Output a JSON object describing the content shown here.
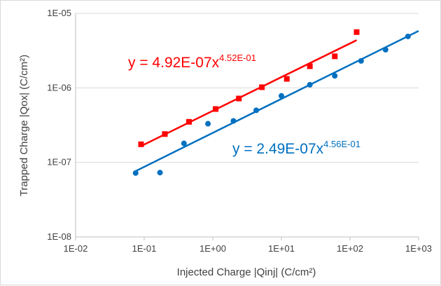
{
  "chart_data": {
    "type": "scatter",
    "title": "",
    "xlabel": "Injected Charge |Qinj| (C/cm²)",
    "ylabel": "Trapped Charge |Qox| (C/cm²)",
    "x_scale": "log",
    "y_scale": "log",
    "xlim": [
      0.01,
      1000
    ],
    "ylim": [
      1e-08,
      1e-05
    ],
    "x_ticks": [
      0.01,
      0.1,
      1,
      10,
      100,
      1000
    ],
    "x_tick_labels": [
      "1E-02",
      "1E-01",
      "1E+00",
      "1E+01",
      "1E+02",
      "1E+03"
    ],
    "y_ticks": [
      1e-08,
      1e-07,
      1e-06,
      1e-05
    ],
    "y_tick_labels": [
      "1E-08",
      "1E-07",
      "1E-06",
      "1E-05"
    ],
    "grid": "horizontal major gridlines",
    "series": [
      {
        "color": "#ff0000",
        "marker": "square",
        "x": [
          0.09,
          0.2,
          0.45,
          1.1,
          2.4,
          5.2,
          12,
          26,
          60,
          125
        ],
        "y": [
          1.75e-07,
          2.4e-07,
          3.5e-07,
          5.2e-07,
          7.2e-07,
          1.02e-06,
          1.32e-06,
          1.95e-06,
          2.65e-06,
          5.6e-06
        ],
        "trendline": {
          "coefficient": 4.92e-07,
          "exponent": 0.452,
          "x_range": [
            0.09,
            125
          ]
        },
        "equation_base": "y = 4.92E-07x",
        "equation_exponent": "4.52E-01"
      },
      {
        "color": "#0070c0",
        "marker": "circle",
        "x": [
          0.075,
          0.17,
          0.38,
          0.85,
          2,
          4.3,
          10,
          26,
          60,
          145,
          330,
          700
        ],
        "y": [
          7.2e-08,
          7.3e-08,
          1.8e-07,
          3.3e-07,
          3.6e-07,
          5e-07,
          7.8e-07,
          1.1e-06,
          1.45e-06,
          2.3e-06,
          3.25e-06,
          4.9e-06
        ],
        "trendline": {
          "coefficient": 2.49e-07,
          "exponent": 0.456,
          "x_range": [
            0.075,
            1000
          ]
        },
        "equation_base": "y = 2.49E-07x",
        "equation_exponent": "4.56E-01"
      }
    ]
  }
}
